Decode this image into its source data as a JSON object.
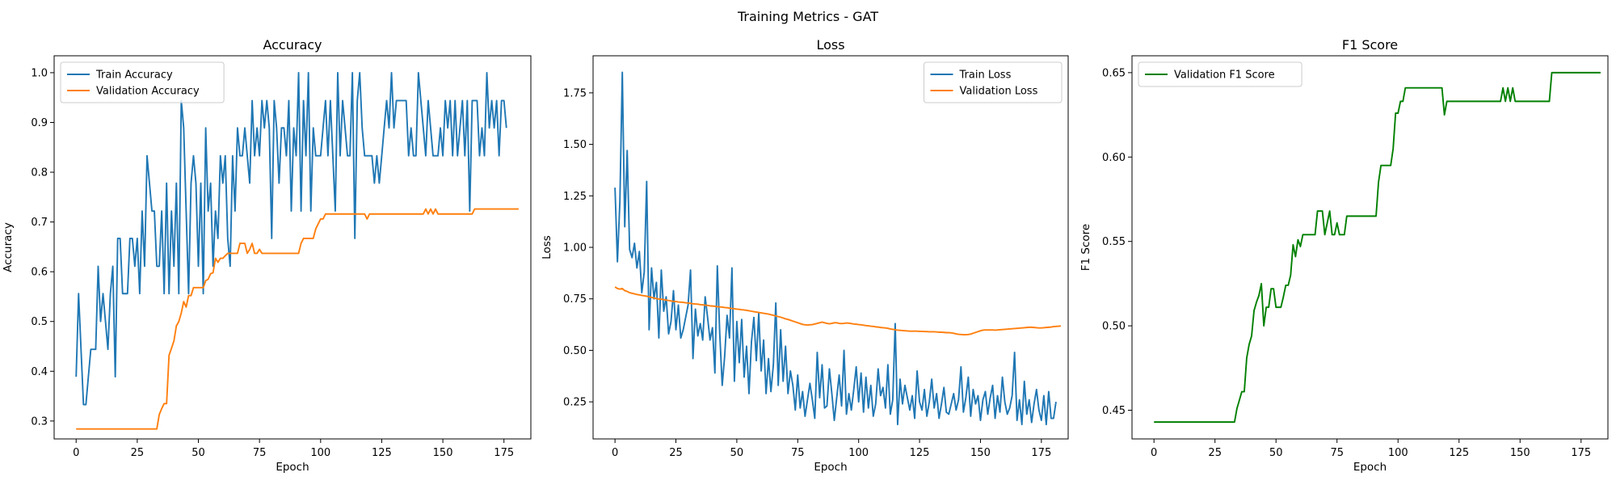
{
  "figure": {
    "suptitle": "Training Metrics - GAT"
  },
  "chart_data": [
    {
      "type": "line",
      "title": "Accuracy",
      "xlabel": "Epoch",
      "ylabel": "Accuracy",
      "xlim": [
        -9,
        186
      ],
      "ylim": [
        0.264,
        1.034
      ],
      "xticks": [
        0,
        25,
        50,
        75,
        100,
        125,
        150,
        175
      ],
      "yticks": [
        0.3,
        0.4,
        0.5,
        0.6,
        0.7,
        0.8,
        0.9,
        1.0
      ],
      "ytick_labels": [
        "0.3",
        "0.4",
        "0.5",
        "0.6",
        "0.7",
        "0.8",
        "0.9",
        "1.0"
      ],
      "grid": false,
      "legend_position": "top-left",
      "series": [
        {
          "name": "Train Accuracy",
          "color": "#1f77b4",
          "values": [
            0.389,
            0.556,
            0.444,
            0.333,
            0.333,
            0.389,
            0.444,
            0.444,
            0.444,
            0.611,
            0.5,
            0.556,
            0.5,
            0.444,
            0.556,
            0.611,
            0.389,
            0.667,
            0.667,
            0.556,
            0.556,
            0.556,
            0.667,
            0.667,
            0.611,
            0.667,
            0.556,
            0.722,
            0.611,
            0.833,
            0.778,
            0.722,
            0.722,
            0.611,
            0.611,
            0.722,
            0.556,
            0.778,
            0.556,
            0.722,
            0.611,
            0.778,
            0.556,
            0.944,
            0.889,
            0.722,
            0.556,
            0.778,
            0.833,
            0.778,
            0.611,
            0.778,
            0.556,
            0.889,
            0.722,
            0.778,
            0.611,
            0.722,
            0.667,
            0.833,
            0.778,
            0.833,
            0.667,
            0.611,
            0.833,
            0.722,
            0.889,
            0.833,
            0.833,
            0.889,
            0.833,
            0.778,
            0.944,
            0.833,
            0.889,
            0.833,
            0.944,
            0.889,
            0.944,
            0.889,
            0.667,
            0.944,
            0.889,
            0.778,
            0.889,
            0.889,
            0.833,
            0.944,
            0.722,
            0.889,
            0.833,
            1.0,
            0.722,
            0.944,
            0.833,
            1.0,
            0.722,
            0.889,
            0.833,
            0.833,
            0.833,
            0.889,
            0.944,
            0.833,
            0.944,
            0.833,
            0.722,
            1.0,
            0.833,
            0.944,
            0.889,
            0.833,
            0.833,
            1.0,
            0.667,
            0.944,
            1.0,
            0.889,
            0.833,
            0.833,
            0.833,
            0.833,
            0.778,
            0.833,
            0.778,
            0.833,
            0.889,
            0.944,
            0.889,
            1.0,
            0.889,
            0.944,
            0.944,
            0.944,
            0.944,
            0.944,
            0.833,
            0.889,
            0.833,
            0.833,
            1.0,
            0.944,
            0.889,
            0.833,
            0.944,
            0.889,
            0.833,
            0.833,
            0.833,
            0.889,
            0.833,
            0.944,
            0.889,
            0.944,
            0.833,
            0.944,
            0.833,
            0.889,
            0.944,
            0.833,
            0.944,
            0.722,
            0.944,
            0.944,
            0.944,
            0.833,
            0.889,
            0.833,
            1.0,
            0.889,
            0.944,
            0.889,
            0.944,
            0.833,
            0.944,
            0.944,
            0.889
          ]
        },
        {
          "name": "Validation Accuracy",
          "color": "#ff7f0e",
          "values": [
            0.284,
            0.284,
            0.284,
            0.284,
            0.284,
            0.284,
            0.284,
            0.284,
            0.284,
            0.284,
            0.284,
            0.284,
            0.284,
            0.284,
            0.284,
            0.284,
            0.284,
            0.284,
            0.284,
            0.284,
            0.284,
            0.284,
            0.284,
            0.284,
            0.284,
            0.284,
            0.284,
            0.284,
            0.284,
            0.284,
            0.284,
            0.284,
            0.284,
            0.284,
            0.313,
            0.325,
            0.335,
            0.335,
            0.432,
            0.446,
            0.461,
            0.491,
            0.5,
            0.517,
            0.54,
            0.529,
            0.552,
            0.552,
            0.568,
            0.568,
            0.568,
            0.568,
            0.568,
            0.582,
            0.585,
            0.596,
            0.598,
            0.627,
            0.619,
            0.627,
            0.627,
            0.632,
            0.637,
            0.637,
            0.637,
            0.637,
            0.637,
            0.657,
            0.657,
            0.657,
            0.637,
            0.645,
            0.657,
            0.637,
            0.637,
            0.645,
            0.637,
            0.637,
            0.637,
            0.637,
            0.637,
            0.637,
            0.637,
            0.637,
            0.637,
            0.637,
            0.637,
            0.637,
            0.637,
            0.637,
            0.637,
            0.637,
            0.657,
            0.667,
            0.667,
            0.667,
            0.667,
            0.667,
            0.686,
            0.696,
            0.706,
            0.706,
            0.716,
            0.716,
            0.716,
            0.716,
            0.716,
            0.716,
            0.716,
            0.716,
            0.716,
            0.716,
            0.716,
            0.716,
            0.716,
            0.716,
            0.716,
            0.716,
            0.716,
            0.706,
            0.716,
            0.716,
            0.716,
            0.716,
            0.716,
            0.716,
            0.716,
            0.716,
            0.716,
            0.716,
            0.716,
            0.716,
            0.716,
            0.716,
            0.716,
            0.716,
            0.716,
            0.716,
            0.716,
            0.716,
            0.716,
            0.716,
            0.716,
            0.726,
            0.716,
            0.726,
            0.716,
            0.726,
            0.716,
            0.716,
            0.716,
            0.716,
            0.716,
            0.716,
            0.716,
            0.716,
            0.716,
            0.716,
            0.716,
            0.716,
            0.716,
            0.716,
            0.716,
            0.726,
            0.726,
            0.726,
            0.726,
            0.726,
            0.726,
            0.726,
            0.726,
            0.726,
            0.726,
            0.726,
            0.726,
            0.726,
            0.726,
            0.726,
            0.726,
            0.726,
            0.726,
            0.726
          ]
        }
      ]
    },
    {
      "type": "line",
      "title": "Loss",
      "xlabel": "Epoch",
      "ylabel": "Loss",
      "xlim": [
        -9,
        186
      ],
      "ylim": [
        0.07,
        1.93
      ],
      "xticks": [
        0,
        25,
        50,
        75,
        100,
        125,
        150,
        175
      ],
      "yticks": [
        0.25,
        0.5,
        0.75,
        1.0,
        1.25,
        1.5,
        1.75
      ],
      "ytick_labels": [
        "0.25",
        "0.50",
        "0.75",
        "1.00",
        "1.25",
        "1.50",
        "1.75"
      ],
      "grid": false,
      "legend_position": "top-right",
      "series": [
        {
          "name": "Train Loss",
          "color": "#1f77b4",
          "values": [
            1.29,
            0.93,
            1.22,
            1.85,
            1.1,
            1.47,
            0.99,
            0.95,
            1.02,
            0.9,
            0.98,
            0.78,
            0.88,
            1.32,
            0.6,
            0.9,
            0.75,
            0.83,
            0.56,
            0.89,
            0.69,
            0.76,
            0.58,
            0.64,
            0.79,
            0.6,
            0.72,
            0.56,
            0.6,
            0.66,
            0.72,
            0.89,
            0.46,
            0.7,
            0.57,
            0.63,
            0.55,
            0.76,
            0.66,
            0.55,
            0.61,
            0.39,
            0.91,
            0.58,
            0.33,
            0.47,
            0.67,
            0.56,
            0.9,
            0.35,
            0.64,
            0.44,
            0.65,
            0.37,
            0.52,
            0.29,
            0.54,
            0.66,
            0.45,
            0.68,
            0.4,
            0.55,
            0.29,
            0.46,
            0.3,
            0.43,
            0.73,
            0.33,
            0.6,
            0.35,
            0.52,
            0.29,
            0.4,
            0.33,
            0.21,
            0.38,
            0.22,
            0.3,
            0.18,
            0.26,
            0.34,
            0.26,
            0.17,
            0.49,
            0.27,
            0.43,
            0.22,
            0.23,
            0.41,
            0.29,
            0.16,
            0.27,
            0.38,
            0.23,
            0.5,
            0.19,
            0.29,
            0.21,
            0.31,
            0.42,
            0.25,
            0.39,
            0.2,
            0.37,
            0.22,
            0.33,
            0.18,
            0.24,
            0.41,
            0.28,
            0.32,
            0.22,
            0.43,
            0.19,
            0.26,
            0.63,
            0.14,
            0.36,
            0.24,
            0.33,
            0.27,
            0.21,
            0.28,
            0.17,
            0.4,
            0.25,
            0.21,
            0.31,
            0.18,
            0.25,
            0.36,
            0.22,
            0.29,
            0.17,
            0.24,
            0.32,
            0.2,
            0.19,
            0.24,
            0.29,
            0.21,
            0.26,
            0.42,
            0.2,
            0.27,
            0.37,
            0.18,
            0.31,
            0.24,
            0.28,
            0.16,
            0.26,
            0.3,
            0.19,
            0.27,
            0.33,
            0.17,
            0.28,
            0.2,
            0.37,
            0.25,
            0.19,
            0.22,
            0.28,
            0.49,
            0.16,
            0.26,
            0.14,
            0.35,
            0.19,
            0.26,
            0.15,
            0.24,
            0.31,
            0.21,
            0.16,
            0.28,
            0.14,
            0.3,
            0.17,
            0.17,
            0.25
          ]
        },
        {
          "name": "Validation Loss",
          "color": "#ff7f0e",
          "values": [
            0.808,
            0.8,
            0.797,
            0.8,
            0.79,
            0.786,
            0.78,
            0.777,
            0.774,
            0.771,
            0.769,
            0.767,
            0.765,
            0.763,
            0.76,
            0.757,
            0.754,
            0.751,
            0.749,
            0.748,
            0.746,
            0.744,
            0.742,
            0.74,
            0.738,
            0.737,
            0.735,
            0.734,
            0.733,
            0.731,
            0.73,
            0.728,
            0.726,
            0.725,
            0.724,
            0.722,
            0.721,
            0.719,
            0.718,
            0.716,
            0.715,
            0.714,
            0.712,
            0.711,
            0.71,
            0.708,
            0.707,
            0.705,
            0.703,
            0.702,
            0.7,
            0.699,
            0.697,
            0.696,
            0.694,
            0.692,
            0.69,
            0.688,
            0.686,
            0.684,
            0.682,
            0.68,
            0.678,
            0.676,
            0.673,
            0.67,
            0.667,
            0.664,
            0.661,
            0.657,
            0.653,
            0.65,
            0.646,
            0.642,
            0.638,
            0.634,
            0.63,
            0.626,
            0.624,
            0.623,
            0.624,
            0.625,
            0.628,
            0.631,
            0.634,
            0.637,
            0.634,
            0.631,
            0.629,
            0.631,
            0.634,
            0.634,
            0.631,
            0.63,
            0.631,
            0.633,
            0.632,
            0.63,
            0.628,
            0.627,
            0.625,
            0.624,
            0.622,
            0.62,
            0.619,
            0.617,
            0.616,
            0.614,
            0.613,
            0.611,
            0.61,
            0.609,
            0.607,
            0.604,
            0.602,
            0.6,
            0.598,
            0.597,
            0.596,
            0.595,
            0.594,
            0.593,
            0.593,
            0.593,
            0.593,
            0.592,
            0.592,
            0.591,
            0.591,
            0.59,
            0.59,
            0.59,
            0.589,
            0.588,
            0.588,
            0.587,
            0.586,
            0.586,
            0.585,
            0.583,
            0.58,
            0.578,
            0.577,
            0.576,
            0.576,
            0.577,
            0.579,
            0.583,
            0.587,
            0.591,
            0.595,
            0.598,
            0.599,
            0.599,
            0.599,
            0.599,
            0.598,
            0.599,
            0.6,
            0.601,
            0.602,
            0.603,
            0.604,
            0.605,
            0.606,
            0.607,
            0.608,
            0.609,
            0.61,
            0.611,
            0.612,
            0.612,
            0.611,
            0.61,
            0.609,
            0.609,
            0.61,
            0.611,
            0.612,
            0.613,
            0.615,
            0.616,
            0.617,
            0.618
          ]
        }
      ]
    },
    {
      "type": "line",
      "title": "F1 Score",
      "xlabel": "Epoch",
      "ylabel": "F1 Score",
      "xlim": [
        -9,
        186
      ],
      "ylim": [
        0.433,
        0.66
      ],
      "xticks": [
        0,
        25,
        50,
        75,
        100,
        125,
        150,
        175
      ],
      "yticks": [
        0.45,
        0.5,
        0.55,
        0.6,
        0.65
      ],
      "ytick_labels": [
        "0.45",
        "0.50",
        "0.55",
        "0.60",
        "0.65"
      ],
      "grid": false,
      "legend_position": "top-left",
      "series": [
        {
          "name": "Validation F1 Score",
          "color": "#008000",
          "values": [
            0.443,
            0.443,
            0.443,
            0.443,
            0.443,
            0.443,
            0.443,
            0.443,
            0.443,
            0.443,
            0.443,
            0.443,
            0.443,
            0.443,
            0.443,
            0.443,
            0.443,
            0.443,
            0.443,
            0.443,
            0.443,
            0.443,
            0.443,
            0.443,
            0.443,
            0.443,
            0.443,
            0.443,
            0.443,
            0.443,
            0.443,
            0.443,
            0.443,
            0.443,
            0.451,
            0.456,
            0.461,
            0.461,
            0.481,
            0.489,
            0.494,
            0.509,
            0.514,
            0.518,
            0.525,
            0.5,
            0.511,
            0.511,
            0.522,
            0.522,
            0.511,
            0.511,
            0.511,
            0.517,
            0.524,
            0.524,
            0.53,
            0.548,
            0.541,
            0.551,
            0.547,
            0.554,
            0.554,
            0.554,
            0.554,
            0.554,
            0.554,
            0.568,
            0.568,
            0.568,
            0.554,
            0.561,
            0.568,
            0.554,
            0.554,
            0.561,
            0.554,
            0.554,
            0.554,
            0.565,
            0.565,
            0.565,
            0.565,
            0.565,
            0.565,
            0.565,
            0.565,
            0.565,
            0.565,
            0.565,
            0.565,
            0.565,
            0.585,
            0.595,
            0.595,
            0.595,
            0.595,
            0.595,
            0.605,
            0.626,
            0.626,
            0.633,
            0.633,
            0.641,
            0.641,
            0.641,
            0.641,
            0.641,
            0.641,
            0.641,
            0.641,
            0.641,
            0.641,
            0.641,
            0.641,
            0.641,
            0.641,
            0.641,
            0.641,
            0.625,
            0.633,
            0.633,
            0.633,
            0.633,
            0.633,
            0.633,
            0.633,
            0.633,
            0.633,
            0.633,
            0.633,
            0.633,
            0.633,
            0.633,
            0.633,
            0.633,
            0.633,
            0.633,
            0.633,
            0.633,
            0.633,
            0.633,
            0.633,
            0.641,
            0.633,
            0.641,
            0.633,
            0.641,
            0.633,
            0.633,
            0.633,
            0.633,
            0.633,
            0.633,
            0.633,
            0.633,
            0.633,
            0.633,
            0.633,
            0.633,
            0.633,
            0.633,
            0.633,
            0.65,
            0.65,
            0.65,
            0.65,
            0.65,
            0.65,
            0.65,
            0.65,
            0.65,
            0.65,
            0.65,
            0.65,
            0.65,
            0.65,
            0.65,
            0.65,
            0.65,
            0.65,
            0.65,
            0.65,
            0.65
          ]
        }
      ]
    }
  ]
}
